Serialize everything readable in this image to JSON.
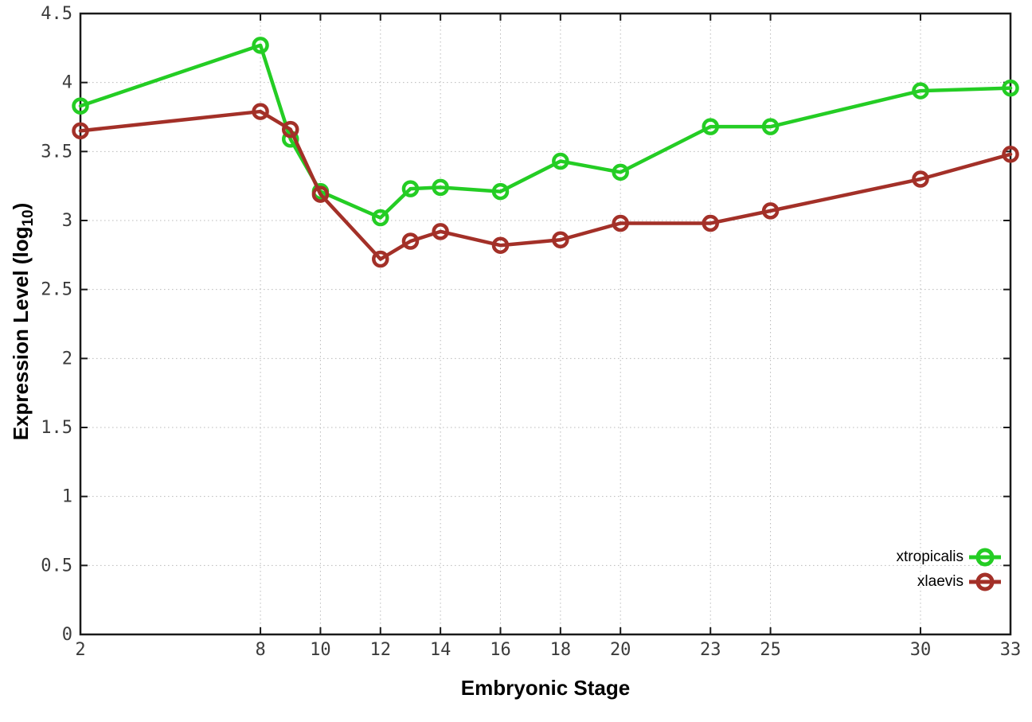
{
  "figure": {
    "xlabel": "Embryonic Stage",
    "ylabel_main": "Expression Level (log",
    "ylabel_sub": "10",
    "ylabel_close": ")"
  },
  "chart_data": {
    "type": "line",
    "title": "",
    "xlabel": "Embryonic Stage",
    "ylabel": "Expression Level (log10)",
    "xlim": [
      2,
      33
    ],
    "ylim": [
      0,
      4.5
    ],
    "grid": true,
    "grid_style": "dotted",
    "legend_position": "bottom-right-inside",
    "x": [
      2,
      8,
      9,
      10,
      12,
      13,
      14,
      16,
      18,
      20,
      23,
      25,
      30,
      33
    ],
    "xticks": [
      2,
      8,
      10,
      12,
      14,
      16,
      18,
      20,
      23,
      25,
      30,
      33
    ],
    "yticks": [
      0,
      0.5,
      1,
      1.5,
      2,
      2.5,
      3,
      3.5,
      4,
      4.5
    ],
    "ytick_labels": [
      "0",
      "0.5",
      "1",
      "1.5",
      "2",
      "2.5",
      "3",
      "3.5",
      "4",
      "4.5"
    ],
    "series": [
      {
        "name": "xtropicalis",
        "color": "#24CD24",
        "marker": "open-circle",
        "values": [
          3.83,
          4.27,
          3.59,
          3.21,
          3.02,
          3.23,
          3.24,
          3.21,
          3.43,
          3.35,
          3.68,
          3.68,
          3.94,
          3.96
        ]
      },
      {
        "name": "xlaevis",
        "color": "#A33028",
        "marker": "open-circle",
        "values": [
          3.65,
          3.79,
          3.66,
          3.19,
          2.72,
          2.85,
          2.92,
          2.82,
          2.86,
          2.98,
          2.98,
          3.07,
          3.3,
          3.48
        ]
      }
    ],
    "colors": {
      "frame": "#1a1a1a",
      "grid": "#b9b9b9",
      "tick_label": "#3c3c3c",
      "background": "#ffffff"
    }
  }
}
